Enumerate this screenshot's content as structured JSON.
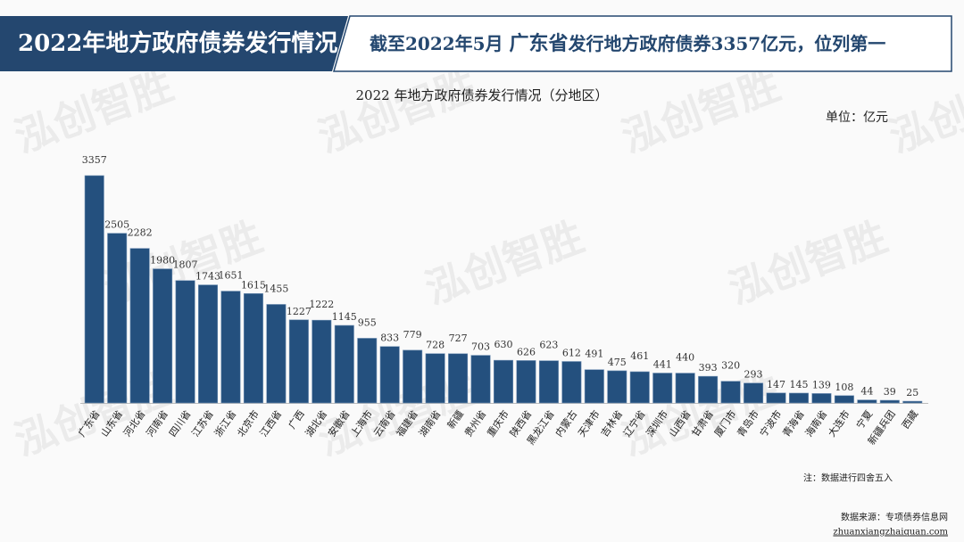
{
  "header": {
    "title": "2022年地方政府债券发行情况",
    "headline": [
      "截至2022年5月 ",
      "广东省",
      "发行地方政府债券3357亿元，位列第一"
    ]
  },
  "watermark": "泓创智胜",
  "chart_data": {
    "type": "bar",
    "title": "2022 年地方政府债券发行情况（分地区）",
    "unit": "单位：亿元",
    "categories": [
      "广东省",
      "山东省",
      "河北省",
      "河南省",
      "四川省",
      "江苏省",
      "浙江省",
      "北京市",
      "江西省",
      "广西",
      "湖北省",
      "安徽省",
      "上海市",
      "云南省",
      "福建省",
      "湖南省",
      "新疆",
      "贵州省",
      "重庆市",
      "陕西省",
      "黑龙江省",
      "内蒙古",
      "天津市",
      "吉林省",
      "辽宁省",
      "深圳市",
      "山西省",
      "甘肃省",
      "厦门市",
      "青岛市",
      "宁波市",
      "青海省",
      "海南省",
      "大连市",
      "宁夏",
      "新疆兵团",
      "西藏"
    ],
    "values": [
      3357,
      2505,
      2282,
      1980,
      1807,
      1743,
      1651,
      1615,
      1455,
      1227,
      1222,
      1145,
      955,
      833,
      779,
      728,
      727,
      703,
      630,
      626,
      623,
      612,
      491,
      475,
      461,
      441,
      440,
      393,
      320,
      293,
      147,
      145,
      139,
      108,
      44,
      39,
      25
    ],
    "color": "#24507e",
    "note": "注：数据进行四舍五入"
  },
  "footer": {
    "source": "数据来源：专项债券信息网",
    "url": "zhuanxiangzhaiquan.com"
  }
}
